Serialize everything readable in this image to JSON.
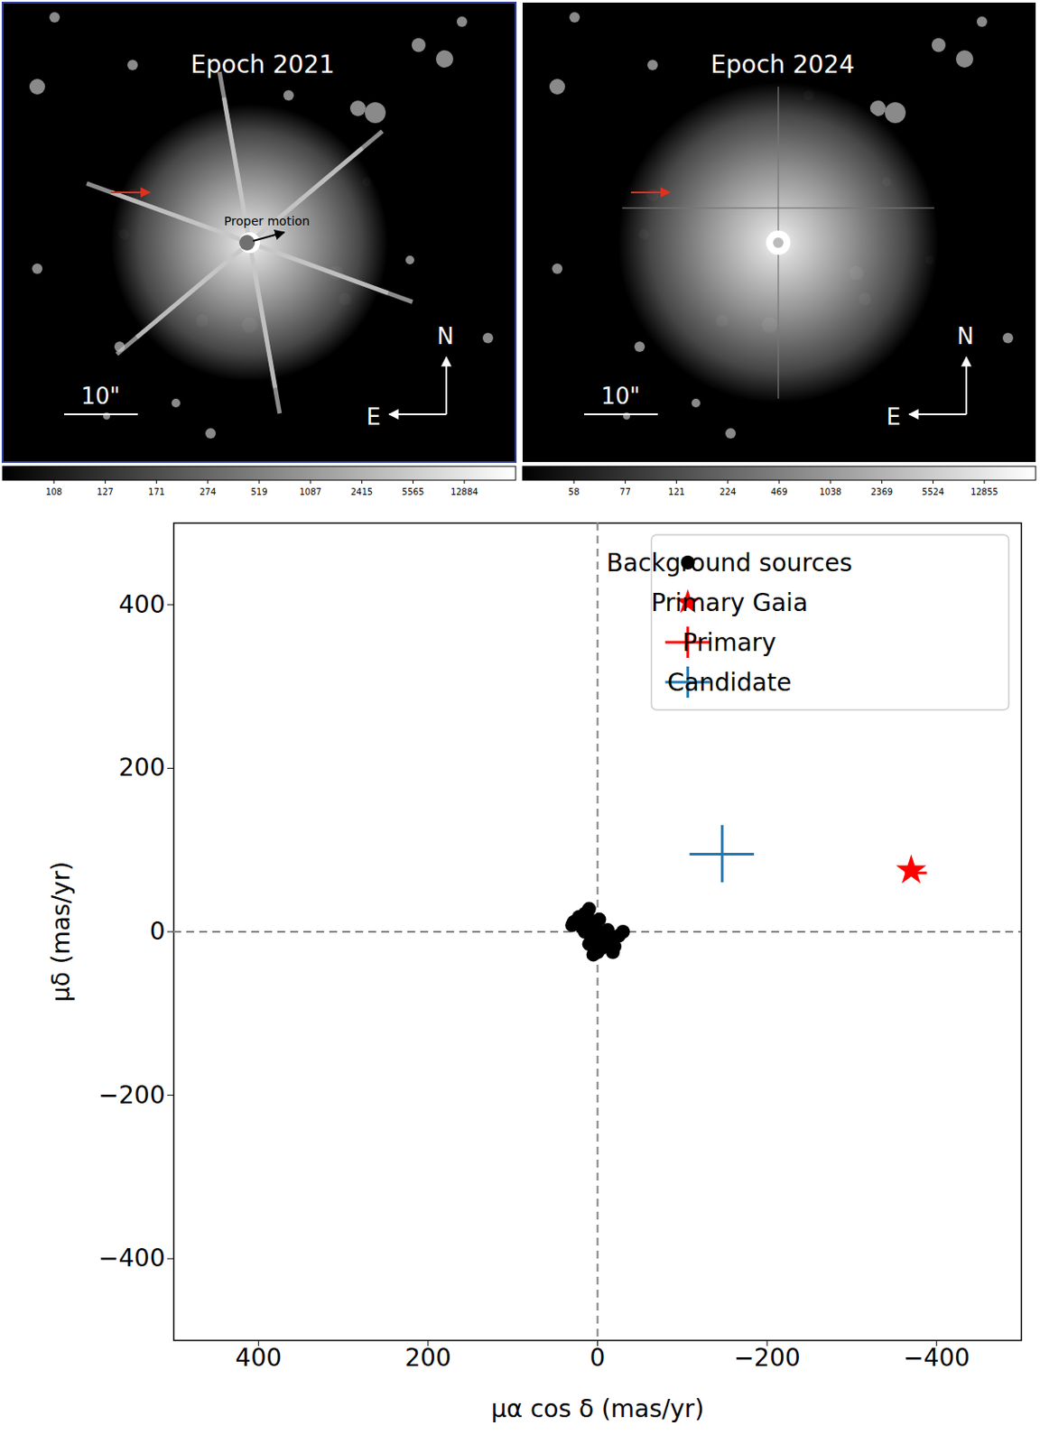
{
  "images": [
    {
      "title": "Epoch 2021",
      "annotation": "Proper motion",
      "scale_bar": "10\"",
      "compass": {
        "north": "N",
        "east": "E"
      },
      "colorbar_ticks": [
        108,
        127,
        171,
        274,
        519,
        1087,
        2415,
        5565,
        12884
      ]
    },
    {
      "title": "Epoch 2024",
      "scale_bar": "10\"",
      "compass": {
        "north": "N",
        "east": "E"
      },
      "colorbar_ticks": [
        58,
        77,
        121,
        224,
        469,
        1038,
        2369,
        5524,
        12855
      ]
    }
  ],
  "chart_data": {
    "type": "scatter",
    "x_label": "μα cos δ (mas/yr)",
    "y_label": "μδ (mas/yr)",
    "xlim": [
      500,
      -500
    ],
    "xticks": [
      400,
      200,
      0,
      -200,
      -400
    ],
    "ylim": [
      -500,
      500
    ],
    "yticks": [
      -400,
      -200,
      0,
      200,
      400
    ],
    "grid": false,
    "legend": "upper right",
    "reference_lines": {
      "x": [
        0
      ],
      "y": [
        0
      ]
    },
    "series": [
      {
        "name": "Background sources",
        "color": "#000000",
        "marker": "circle",
        "x": [
          10,
          15,
          20,
          25,
          18,
          12,
          5,
          0,
          -5,
          8,
          2,
          -10,
          -15,
          -20,
          -5,
          0,
          5,
          -8,
          15,
          22,
          10,
          -2,
          30,
          -25,
          12,
          -18,
          3,
          7,
          -12,
          28,
          -30
        ],
        "y": [
          28,
          22,
          15,
          10,
          5,
          12,
          8,
          2,
          -2,
          -5,
          -10,
          -8,
          -12,
          -18,
          -20,
          -25,
          -28,
          -15,
          0,
          18,
          -15,
          15,
          8,
          -5,
          20,
          -25,
          -18,
          3,
          2,
          12,
          0
        ]
      },
      {
        "name": "Primary Gaia",
        "color": "#ff0000",
        "marker": "star",
        "x": [
          -370
        ],
        "y": [
          75
        ]
      },
      {
        "name": "Primary",
        "color": "#ff0000",
        "marker": "cross",
        "x": [
          -376
        ],
        "y": [
          72
        ],
        "x_error": [
          13
        ],
        "y_error": [
          4
        ]
      },
      {
        "name": "Candidate",
        "color": "#1f77b4",
        "marker": "cross",
        "x": [
          -147
        ],
        "y": [
          95
        ],
        "x_error": [
          38
        ],
        "y_error": [
          35
        ]
      }
    ]
  }
}
